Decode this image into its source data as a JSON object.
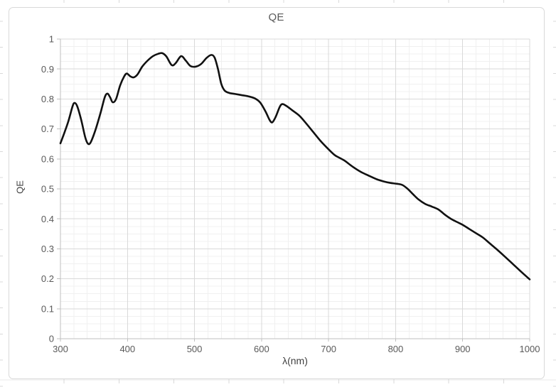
{
  "chart_data": {
    "type": "line",
    "title": "QE",
    "xlabel": "λ(nm)",
    "ylabel": "QE",
    "xlim": [
      300,
      1000
    ],
    "ylim": [
      0,
      1
    ],
    "grid": "major+minor",
    "legend": "none",
    "x_tick_values": [
      300,
      400,
      500,
      600,
      700,
      800,
      900,
      1000
    ],
    "x_tick_labels": [
      "300",
      "400",
      "500",
      "600",
      "700",
      "800",
      "900",
      "1000"
    ],
    "y_tick_values": [
      0,
      0.1,
      0.2,
      0.3,
      0.4,
      0.5,
      0.6,
      0.7,
      0.8,
      0.9,
      1
    ],
    "y_tick_labels": [
      "0",
      "0.1",
      "0.2",
      "0.3",
      "0.4",
      "0.5",
      "0.6",
      "0.7",
      "0.8",
      "0.9",
      "1"
    ],
    "x_minor_step": 20,
    "y_minor_step": 0.025,
    "series": [
      {
        "name": "QE",
        "points": [
          [
            300,
            0.652
          ],
          [
            306,
            0.688
          ],
          [
            312,
            0.727
          ],
          [
            318,
            0.775
          ],
          [
            321,
            0.787
          ],
          [
            325,
            0.776
          ],
          [
            331,
            0.73
          ],
          [
            337,
            0.672
          ],
          [
            341,
            0.651
          ],
          [
            345,
            0.655
          ],
          [
            352,
            0.695
          ],
          [
            360,
            0.755
          ],
          [
            366,
            0.805
          ],
          [
            370,
            0.818
          ],
          [
            374,
            0.806
          ],
          [
            378,
            0.789
          ],
          [
            383,
            0.8
          ],
          [
            389,
            0.845
          ],
          [
            395,
            0.875
          ],
          [
            399,
            0.885
          ],
          [
            404,
            0.876
          ],
          [
            409,
            0.872
          ],
          [
            415,
            0.882
          ],
          [
            422,
            0.908
          ],
          [
            430,
            0.928
          ],
          [
            438,
            0.943
          ],
          [
            446,
            0.951
          ],
          [
            452,
            0.953
          ],
          [
            458,
            0.942
          ],
          [
            466,
            0.913
          ],
          [
            472,
            0.92
          ],
          [
            480,
            0.943
          ],
          [
            487,
            0.928
          ],
          [
            494,
            0.91
          ],
          [
            502,
            0.908
          ],
          [
            510,
            0.917
          ],
          [
            518,
            0.937
          ],
          [
            525,
            0.947
          ],
          [
            530,
            0.938
          ],
          [
            535,
            0.9
          ],
          [
            540,
            0.85
          ],
          [
            545,
            0.828
          ],
          [
            552,
            0.82
          ],
          [
            560,
            0.817
          ],
          [
            570,
            0.813
          ],
          [
            580,
            0.809
          ],
          [
            590,
            0.802
          ],
          [
            598,
            0.788
          ],
          [
            606,
            0.758
          ],
          [
            612,
            0.73
          ],
          [
            616,
            0.722
          ],
          [
            621,
            0.74
          ],
          [
            627,
            0.773
          ],
          [
            631,
            0.783
          ],
          [
            637,
            0.777
          ],
          [
            646,
            0.762
          ],
          [
            656,
            0.745
          ],
          [
            666,
            0.72
          ],
          [
            677,
            0.69
          ],
          [
            688,
            0.66
          ],
          [
            700,
            0.632
          ],
          [
            709,
            0.613
          ],
          [
            716,
            0.604
          ],
          [
            724,
            0.594
          ],
          [
            736,
            0.574
          ],
          [
            748,
            0.557
          ],
          [
            760,
            0.544
          ],
          [
            772,
            0.532
          ],
          [
            782,
            0.525
          ],
          [
            792,
            0.52
          ],
          [
            802,
            0.517
          ],
          [
            810,
            0.513
          ],
          [
            818,
            0.5
          ],
          [
            826,
            0.482
          ],
          [
            834,
            0.465
          ],
          [
            844,
            0.45
          ],
          [
            854,
            0.441
          ],
          [
            864,
            0.431
          ],
          [
            874,
            0.413
          ],
          [
            884,
            0.398
          ],
          [
            893,
            0.388
          ],
          [
            900,
            0.38
          ],
          [
            910,
            0.366
          ],
          [
            920,
            0.352
          ],
          [
            930,
            0.338
          ],
          [
            940,
            0.319
          ],
          [
            950,
            0.3
          ],
          [
            962,
            0.276
          ],
          [
            975,
            0.249
          ],
          [
            988,
            0.222
          ],
          [
            1000,
            0.198
          ]
        ]
      }
    ]
  },
  "colors": {
    "curve": "#111111",
    "major_grid": "#d9d9d9",
    "minor_grid": "#f0f0f0",
    "axis": "#bfbfbf",
    "tick_text": "#595959",
    "label_text": "#404040",
    "chart_border": "#d9d9d9",
    "chart_bg": "#ffffff",
    "worksheet_grid": "#d9d9d9",
    "worksheet_row_line": "#e8e8e8"
  }
}
